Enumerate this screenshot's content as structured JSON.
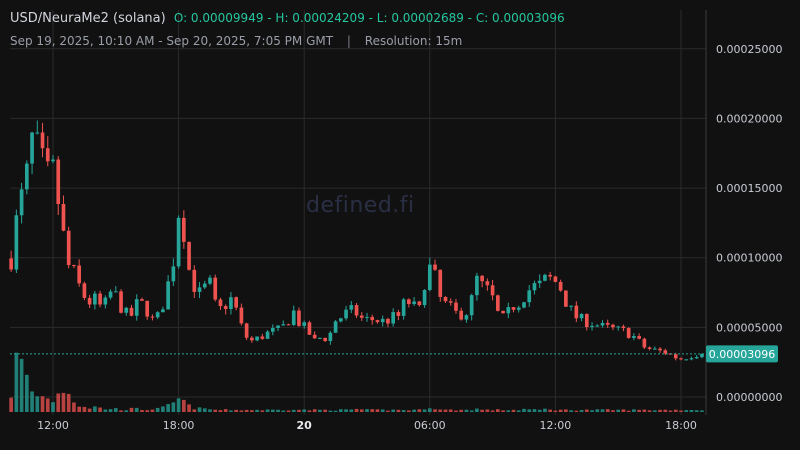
{
  "header": {
    "symbol": "USD/NeuraMe2 (solana)",
    "ohlc": "O: 0.00009949 - H: 0.00024209 - L: 0.00002689 - C: 0.00003096",
    "range": "Sep 19, 2025, 10:10 AM - Sep 20, 2025, 7:05 PM GMT",
    "separator": "|",
    "resolution": "Resolution: 15m"
  },
  "watermark": "defined.fi",
  "colors": {
    "background": "#111111",
    "up": "#26a69a",
    "down": "#ef5350",
    "grid": "#2b2b2b",
    "last_price": "#26a69a"
  },
  "chart_data": {
    "type": "candlestick",
    "interval": "15m",
    "y_ticks": [
      "0.00025000",
      "0.00020000",
      "0.00015000",
      "0.00010000",
      "0.00005000",
      "0.00000000"
    ],
    "ylim": [
      -3.8e-05,
      0.000285
    ],
    "x_ticks": [
      {
        "label": "12:00",
        "time": "2025-09-19T12:00",
        "bold": false
      },
      {
        "label": "18:00",
        "time": "2025-09-19T18:00",
        "bold": false
      },
      {
        "label": "20",
        "time": "2025-09-20T00:00",
        "bold": true
      },
      {
        "label": "06:00",
        "time": "2025-09-20T06:00",
        "bold": false
      },
      {
        "label": "12:00",
        "time": "2025-09-20T12:00",
        "bold": false
      },
      {
        "label": "18:00",
        "time": "2025-09-20T18:00",
        "bold": false
      }
    ],
    "first_bar_time": "2025-09-19T10:00",
    "last_price": "0.00003096",
    "last_price_value": 3.096e-05,
    "close_path": [
      9.95e-05,
      0.000135,
      0.000152,
      0.000185,
      0.000175,
      0.000158,
      0.000162,
      0.00013,
      9.5e-05,
      8.8e-05,
      7.5e-05,
      6.8e-05,
      7e-05,
      6.2e-05,
      7.5e-05,
      7.2e-05,
      6e-05,
      5.8e-05,
      6.8e-05,
      6.5e-05,
      5.5e-05,
      5.8e-05,
      7.5e-05,
      9.8e-05,
      0.000145,
      9.5e-05,
      8e-05,
      7.2e-05,
      8.5e-05,
      6.5e-05,
      6.2e-05,
      7.2e-05,
      6.2e-05,
      4.5e-05,
      4e-05,
      4.2e-05,
      4.5e-05,
      4.7e-05,
      4.8e-05,
      5.2e-05,
      6.2e-05,
      5.2e-05,
      4.8e-05,
      4e-05,
      4.3e-05,
      4.2e-05,
      5.5e-05,
      5.8e-05,
      6.2e-05,
      6e-05,
      5.5e-05,
      5.6e-05,
      5.5e-05,
      5.4e-05,
      5.7e-05,
      5.8e-05,
      7e-05,
      6.5e-05,
      6.2e-05,
      9.5e-05,
      8.8e-05,
      6.8e-05,
      6.5e-05,
      6e-05,
      6e-05,
      6.2e-05,
      8.5e-05,
      7.8e-05,
      7.5e-05,
      6e-05,
      5.5e-05,
      6.5e-05,
      6.8e-05,
      7.5e-05,
      7.9e-05,
      8e-05,
      8.5e-05,
      8.4e-05,
      7.8e-05,
      6.5e-05,
      5.8e-05,
      5.5e-05,
      5.4e-05,
      5.2e-05,
      5e-05,
      4.9e-05,
      4.8e-05,
      4.7e-05,
      4.5e-05,
      4e-05,
      3.5e-05,
      3.4e-05,
      3.3e-05,
      3.2e-05,
      2.9e-05,
      2.75e-05,
      2.9e-05,
      3.05e-05,
      3.1e-05
    ],
    "volume_path": [
      18,
      58,
      34,
      20,
      13,
      16,
      11,
      20,
      26,
      9,
      6,
      4,
      5,
      3,
      3,
      3,
      2,
      3,
      3,
      2,
      3,
      3,
      5,
      8,
      14,
      6,
      4,
      3,
      3,
      2,
      2,
      2,
      2,
      2,
      2,
      2,
      2,
      2,
      2,
      2,
      3,
      2,
      2,
      2,
      2,
      2,
      2,
      2,
      2,
      3,
      2,
      2,
      2,
      2,
      2,
      2,
      2,
      2,
      2,
      5,
      4,
      2,
      2,
      2,
      2,
      2,
      3,
      2,
      2,
      2,
      2,
      2,
      2,
      3,
      2,
      2,
      3,
      2,
      2,
      2,
      2,
      2,
      2,
      2,
      2,
      2,
      2,
      2,
      2,
      2,
      2,
      2,
      2,
      2,
      2,
      2,
      2,
      2,
      2
    ]
  }
}
